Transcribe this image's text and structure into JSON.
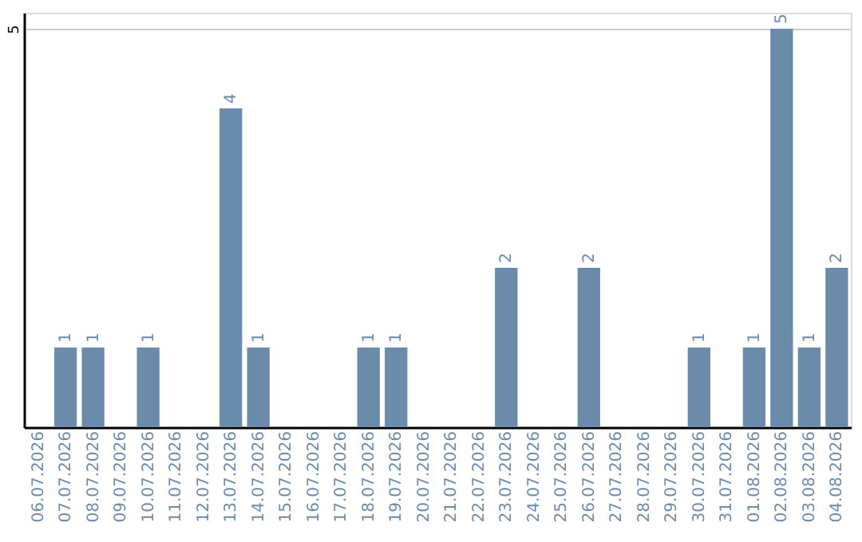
{
  "chart_data": {
    "type": "bar",
    "categories": [
      "06.07.2026",
      "07.07.2026",
      "08.07.2026",
      "09.07.2026",
      "10.07.2026",
      "11.07.2026",
      "12.07.2026",
      "13.07.2026",
      "14.07.2026",
      "15.07.2026",
      "16.07.2026",
      "17.07.2026",
      "18.07.2026",
      "19.07.2026",
      "20.07.2026",
      "21.07.2026",
      "22.07.2026",
      "23.07.2026",
      "24.07.2026",
      "25.07.2026",
      "26.07.2026",
      "27.07.2026",
      "28.07.2026",
      "29.07.2026",
      "30.07.2026",
      "31.07.2026",
      "01.08.2026",
      "02.08.2026",
      "03.08.2026",
      "04.08.2026"
    ],
    "values": [
      0,
      1,
      1,
      0,
      1,
      0,
      0,
      4,
      1,
      0,
      0,
      0,
      1,
      1,
      0,
      0,
      0,
      2,
      0,
      0,
      2,
      0,
      0,
      0,
      1,
      0,
      1,
      5,
      1,
      2
    ],
    "value_labels": [
      null,
      "1",
      "1",
      null,
      "1",
      null,
      null,
      "4",
      "1",
      null,
      null,
      null,
      "1",
      "1",
      null,
      null,
      null,
      "2",
      null,
      null,
      "2",
      null,
      null,
      null,
      "1",
      null,
      "1",
      "5",
      "1",
      "2"
    ],
    "color": "#6b8bab",
    "ylim": [
      0,
      5.2
    ],
    "yticks": [
      5
    ],
    "grid": "y"
  }
}
